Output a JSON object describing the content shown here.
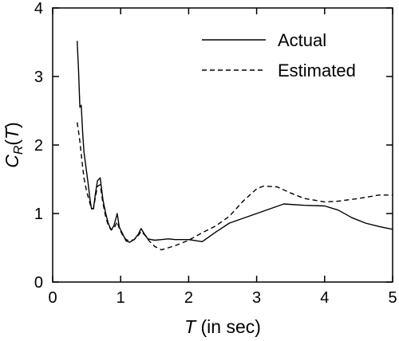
{
  "chart_data": {
    "type": "line",
    "xlabel": {
      "symbol": "T",
      "rest": " (in sec)"
    },
    "ylabel": {
      "base": "C",
      "sub": "R",
      "open": "(",
      "arg": "T",
      "close": ")"
    },
    "xlim": [
      0,
      5
    ],
    "ylim": [
      0,
      4
    ],
    "xticks": [
      0,
      1,
      2,
      3,
      4,
      5
    ],
    "yticks": [
      0,
      1,
      2,
      3,
      4
    ],
    "grid": false,
    "legend_position": "top-right",
    "colors": {
      "line": "#000000",
      "axis": "#000000",
      "background": "#ffffff"
    },
    "series": [
      {
        "name": "Actual",
        "style": "solid",
        "points": [
          [
            0.36,
            3.52
          ],
          [
            0.38,
            3.1
          ],
          [
            0.4,
            2.55
          ],
          [
            0.42,
            2.58
          ],
          [
            0.44,
            2.2
          ],
          [
            0.46,
            1.9
          ],
          [
            0.48,
            1.75
          ],
          [
            0.52,
            1.45
          ],
          [
            0.55,
            1.2
          ],
          [
            0.57,
            1.07
          ],
          [
            0.6,
            1.07
          ],
          [
            0.63,
            1.3
          ],
          [
            0.66,
            1.48
          ],
          [
            0.7,
            1.52
          ],
          [
            0.74,
            1.2
          ],
          [
            0.78,
            1.0
          ],
          [
            0.82,
            0.85
          ],
          [
            0.86,
            0.76
          ],
          [
            0.9,
            0.82
          ],
          [
            0.95,
            1.0
          ],
          [
            0.98,
            0.8
          ],
          [
            1.03,
            0.7
          ],
          [
            1.08,
            0.6
          ],
          [
            1.13,
            0.58
          ],
          [
            1.2,
            0.62
          ],
          [
            1.26,
            0.7
          ],
          [
            1.3,
            0.78
          ],
          [
            1.35,
            0.7
          ],
          [
            1.4,
            0.63
          ],
          [
            1.45,
            0.62
          ],
          [
            1.5,
            0.61
          ],
          [
            1.6,
            0.62
          ],
          [
            1.7,
            0.63
          ],
          [
            1.8,
            0.62
          ],
          [
            2.0,
            0.62
          ],
          [
            2.2,
            0.59
          ],
          [
            2.4,
            0.73
          ],
          [
            2.6,
            0.86
          ],
          [
            2.8,
            0.93
          ],
          [
            3.0,
            1.0
          ],
          [
            3.2,
            1.07
          ],
          [
            3.4,
            1.14
          ],
          [
            3.7,
            1.12
          ],
          [
            4.0,
            1.11
          ],
          [
            4.2,
            1.05
          ],
          [
            4.4,
            0.94
          ],
          [
            4.6,
            0.86
          ],
          [
            4.8,
            0.81
          ],
          [
            5.0,
            0.77
          ]
        ]
      },
      {
        "name": "Estimated",
        "style": "dashed",
        "points": [
          [
            0.36,
            2.33
          ],
          [
            0.38,
            2.2
          ],
          [
            0.4,
            2.05
          ],
          [
            0.43,
            1.78
          ],
          [
            0.46,
            1.52
          ],
          [
            0.5,
            1.32
          ],
          [
            0.54,
            1.18
          ],
          [
            0.57,
            1.07
          ],
          [
            0.6,
            1.07
          ],
          [
            0.63,
            1.25
          ],
          [
            0.66,
            1.4
          ],
          [
            0.7,
            1.42
          ],
          [
            0.74,
            1.15
          ],
          [
            0.78,
            0.95
          ],
          [
            0.82,
            0.82
          ],
          [
            0.86,
            0.76
          ],
          [
            0.9,
            0.78
          ],
          [
            0.95,
            0.88
          ],
          [
            0.98,
            0.78
          ],
          [
            1.03,
            0.68
          ],
          [
            1.08,
            0.62
          ],
          [
            1.13,
            0.6
          ],
          [
            1.2,
            0.62
          ],
          [
            1.26,
            0.68
          ],
          [
            1.3,
            0.74
          ],
          [
            1.36,
            0.68
          ],
          [
            1.42,
            0.6
          ],
          [
            1.5,
            0.52
          ],
          [
            1.6,
            0.47
          ],
          [
            1.7,
            0.5
          ],
          [
            1.8,
            0.53
          ],
          [
            1.9,
            0.57
          ],
          [
            2.0,
            0.61
          ],
          [
            2.2,
            0.72
          ],
          [
            2.4,
            0.82
          ],
          [
            2.6,
            0.96
          ],
          [
            2.8,
            1.18
          ],
          [
            3.0,
            1.36
          ],
          [
            3.1,
            1.4
          ],
          [
            3.3,
            1.39
          ],
          [
            3.5,
            1.3
          ],
          [
            3.7,
            1.22
          ],
          [
            4.0,
            1.17
          ],
          [
            4.2,
            1.18
          ],
          [
            4.5,
            1.22
          ],
          [
            4.8,
            1.27
          ],
          [
            5.0,
            1.27
          ]
        ]
      }
    ]
  }
}
